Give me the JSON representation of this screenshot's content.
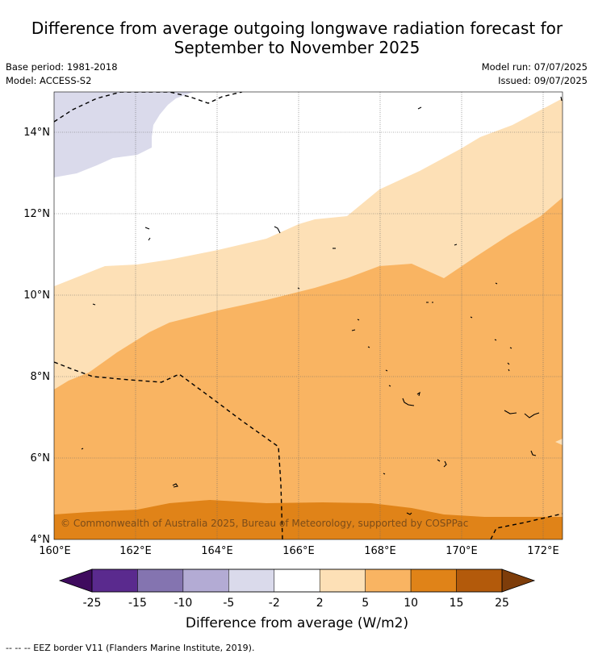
{
  "title": {
    "line1": "Difference from average outgoing longwave radiation forecast for",
    "line2": "September to November 2025"
  },
  "meta": {
    "base_period": "Base period: 1981-2018",
    "model": "Model: ACCESS-S2",
    "model_run": "Model run: 07/07/2025",
    "issued": "Issued: 09/07/2025"
  },
  "map": {
    "lon_range": [
      160,
      172.5
    ],
    "lat_range": [
      4,
      15
    ],
    "x_ticks": [
      "160°E",
      "162°E",
      "164°E",
      "166°E",
      "168°E",
      "170°E",
      "172°E"
    ],
    "y_ticks": [
      "4°N",
      "6°N",
      "8°N",
      "10°N",
      "12°N",
      "14°N"
    ],
    "copyright": "© Commonwealth of Australia 2025, Bureau of Meteorology, supported by COSPPac"
  },
  "colorbar": {
    "ticks": [
      "-25",
      "-15",
      "-10",
      "-5",
      "-2",
      "2",
      "5",
      "10",
      "15",
      "25"
    ],
    "colors": [
      "#5a2a8e",
      "#8474b0",
      "#b3abd4",
      "#dadaeb",
      "#ffffff",
      "#fde0b6",
      "#f9b462",
      "#e08318",
      "#b35a0b"
    ],
    "low_extend_color": "#3f0b5e",
    "high_extend_color": "#7e3d0a",
    "label": "Difference from average (W/m2)"
  },
  "footer": {
    "legend_text": "--  --  -- EEZ border V11 (Flanders Marine Institute, 2019)."
  }
}
